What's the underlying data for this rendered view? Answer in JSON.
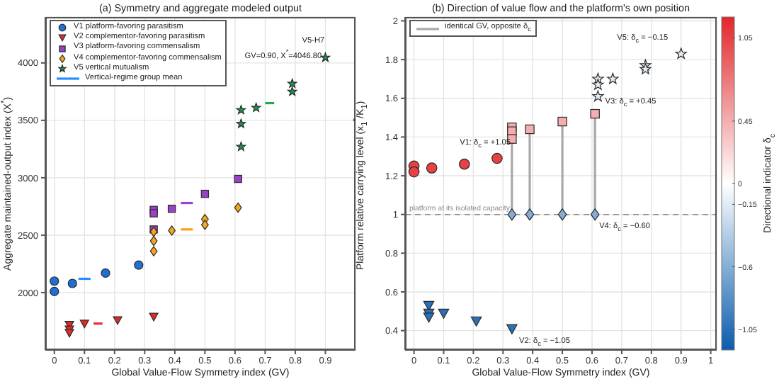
{
  "chart_data": [
    {
      "type": "scatter",
      "title": "(a) Symmetry and aggregate modeled output",
      "xlabel": "Global Value-Flow Symmetry index (GV)",
      "ylabel": "Aggregate maintained-output index (X$^{*}$)",
      "xlim": [
        -0.03,
        1.0
      ],
      "xticks": [
        0,
        0.1,
        0.2,
        0.3,
        0.4,
        0.5,
        0.6,
        0.7,
        0.8,
        0.9
      ],
      "ylim": [
        1500,
        4400
      ],
      "yticks": [
        2000,
        2500,
        3000,
        3500,
        4000
      ],
      "grid": true,
      "legend": "top left",
      "series": [
        {
          "name": "V1  platform-favoring parasitism",
          "color": "#1f6fd6",
          "marker": "circle",
          "x": [
            0,
            0,
            0.06,
            0.17,
            0.28
          ],
          "values": [
            2100,
            2010,
            2080,
            2170,
            2240
          ]
        },
        {
          "name": "V2  complementor-favoring parasitism",
          "color": "#e02a2a",
          "marker": "triangle",
          "x": [
            0.05,
            0.05,
            0.05,
            0.1,
            0.21,
            0.33
          ],
          "values": [
            1720,
            1680,
            1650,
            1730,
            1760,
            1790
          ]
        },
        {
          "name": "V3  platform-favoring commensalism",
          "color": "#9b40c8",
          "marker": "square",
          "x": [
            0.33,
            0.33,
            0.33,
            0.39,
            0.5,
            0.61
          ],
          "values": [
            2720,
            2690,
            2550,
            2730,
            2860,
            2990
          ]
        },
        {
          "name": "V4  complementor-favoring commensalism",
          "color": "#f5a51e",
          "marker": "diamond",
          "x": [
            0.33,
            0.33,
            0.33,
            0.39,
            0.5,
            0.5,
            0.61
          ],
          "values": [
            2530,
            2450,
            2360,
            2540,
            2640,
            2590,
            2740
          ]
        },
        {
          "name": "V5  vertical mutualism",
          "color": "#1f8f4f",
          "marker": "star",
          "x": [
            0.62,
            0.62,
            0.62,
            0.67,
            0.79,
            0.79,
            0.9
          ],
          "values": [
            3590,
            3470,
            3270,
            3610,
            3820,
            3750,
            4046.8
          ]
        },
        {
          "name": "Vertical-regime group mean",
          "type": "line",
          "color": "#2a8cff",
          "x": [
            0.08,
            0.12
          ],
          "values": [
            2120,
            2120
          ]
        },
        {
          "type": "line",
          "color": "#e83030",
          "x": [
            0.13,
            0.16
          ],
          "values": [
            1730,
            1730
          ]
        },
        {
          "type": "line",
          "color": "#a040d0",
          "x": [
            0.42,
            0.46
          ],
          "values": [
            2780,
            2780
          ]
        },
        {
          "type": "line",
          "color": "#ff9f1a",
          "x": [
            0.42,
            0.46
          ],
          "values": [
            2550,
            2550
          ]
        },
        {
          "type": "line",
          "color": "#22aa44",
          "x": [
            0.7,
            0.73
          ],
          "values": [
            3650,
            3650
          ]
        }
      ],
      "annotations": [
        "V5-H7",
        "GV=0.90, X$^{*}$=4046.80"
      ]
    },
    {
      "type": "scatter",
      "title": "(b) Direction of value flow and the platform's own position",
      "xlabel": "Global Value-Flow Symmetry index (GV)",
      "ylabel": "Platform relative carrying level (x$_{1}$$^{*}$/K$_{1}$)",
      "clabel": "Directional indicator δ$_{c}$",
      "xlim": [
        -0.03,
        1.02
      ],
      "xticks": [
        0,
        0.1,
        0.2,
        0.3,
        0.4,
        0.5,
        0.6,
        0.7,
        0.8,
        0.9,
        1
      ],
      "ylim": [
        0.3,
        2.02
      ],
      "yticks": [
        0.4,
        0.6,
        0.8,
        1,
        1.2,
        1.4,
        1.6,
        1.8,
        2
      ],
      "clim": [
        -1.2,
        1.2
      ],
      "cticks": [
        {
          "value": -1.05,
          "label": "−1.05"
        },
        {
          "value": -0.6,
          "label": "−0.6"
        },
        {
          "value": -0.15,
          "label": "−0.15"
        },
        0,
        0.45,
        1.05
      ],
      "grid": true,
      "legend": "top left",
      "ref_lines": [
        {
          "axis": "y",
          "value": 1,
          "label": "platform at its isolated capacity",
          "color": "#8a8a8a",
          "line_style": "dashed"
        }
      ],
      "series": [
        {
          "name": "identical GV, opposite δ$_{c}$",
          "type": "line",
          "color": "#a8a8a8",
          "x": [
            0.33,
            0.33
          ],
          "values": [
            1.45,
            1
          ]
        },
        {
          "type": "line",
          "color": "#a8a8a8",
          "x": [
            0.39,
            0.39
          ],
          "values": [
            1.44,
            1
          ]
        },
        {
          "type": "line",
          "color": "#a8a8a8",
          "x": [
            0.5,
            0.5
          ],
          "values": [
            1.48,
            1
          ]
        },
        {
          "type": "line",
          "color": "#a8a8a8",
          "x": [
            0.61,
            0.61
          ],
          "values": [
            1.52,
            1
          ]
        },
        {
          "marker": "circle",
          "x": [
            0,
            0,
            0.06,
            0.17,
            0.28
          ],
          "values": [
            1.25,
            1.22,
            1.24,
            1.26,
            1.29
          ],
          "cvalues": [
            1.05,
            1.05,
            1.05,
            1.05,
            1.05
          ]
        },
        {
          "marker": "triangle",
          "x": [
            0.05,
            0.05,
            0.05,
            0.1,
            0.21,
            0.33
          ],
          "values": [
            0.53,
            0.49,
            0.47,
            0.49,
            0.45,
            0.41
          ],
          "cvalues": [
            -1.05,
            -1.05,
            -1.05,
            -1.05,
            -1.05,
            -1.05
          ]
        },
        {
          "marker": "square",
          "x": [
            0.33,
            0.33,
            0.33,
            0.39,
            0.5,
            0.61
          ],
          "values": [
            1.45,
            1.43,
            1.39,
            1.44,
            1.48,
            1.52
          ],
          "cvalues": [
            0.45,
            0.45,
            0.45,
            0.45,
            0.45,
            0.45
          ]
        },
        {
          "marker": "diamond",
          "x": [
            0.33,
            0.39,
            0.5,
            0.61
          ],
          "values": [
            1,
            1,
            1,
            1
          ],
          "cvalues": [
            -0.6,
            -0.6,
            -0.6,
            -0.6
          ]
        },
        {
          "marker": "star",
          "x": [
            0.62,
            0.62,
            0.62,
            0.67,
            0.78,
            0.78,
            0.9
          ],
          "values": [
            1.7,
            1.67,
            1.61,
            1.7,
            1.77,
            1.75,
            1.83
          ],
          "cvalues": [
            -0.15,
            -0.15,
            -0.15,
            -0.15,
            -0.15,
            -0.15,
            -0.15
          ]
        }
      ],
      "annotations": [
        "V5: δ$_{c}$ = −0.15",
        "V3: δ$_{c}$ = +0.45",
        "V1: δ$_{c}$ = +1.05",
        "V4: δ$_{c}$ = −0.60",
        "V2: δ$_{c}$ = −1.05"
      ]
    }
  ]
}
